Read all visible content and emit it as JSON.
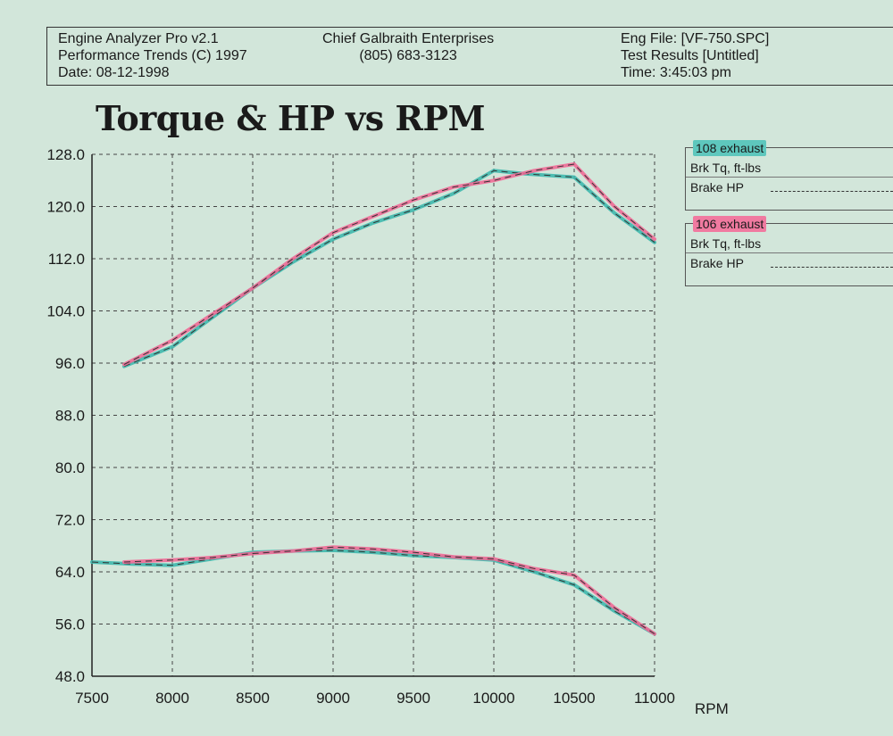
{
  "header": {
    "left": [
      "Engine Analyzer Pro v2.1",
      "Performance Trends (C) 1997",
      "Date: 08-12-1998"
    ],
    "middle": [
      "Chief Galbraith Enterprises",
      "(805) 683-3123"
    ],
    "right": [
      "Eng File: [VF-750.SPC]",
      "Test Results [Untitled]",
      "Time: 3:45:03 pm"
    ]
  },
  "legend": [
    {
      "label": "108 exhaust",
      "row1": "Brk Tq, ft-lbs",
      "row2": "Brake HP",
      "color": "#5ec7bd"
    },
    {
      "label": "106 exhaust",
      "row1": "Brk Tq, ft-lbs",
      "row2": "Brake HP",
      "color": "#f07aa0"
    }
  ],
  "chart_data": {
    "type": "line",
    "title": "Torque & HP vs RPM",
    "xlabel": "RPM",
    "ylabel": "",
    "xlim": [
      7500,
      11000
    ],
    "ylim": [
      48,
      128
    ],
    "xticks": [
      7500,
      8000,
      8500,
      9000,
      9500,
      10000,
      10500,
      11000
    ],
    "yticks": [
      "48.0",
      "56.0",
      "64.0",
      "72.0",
      "80.0",
      "88.0",
      "96.0",
      "104.0",
      "112.0",
      "120.0",
      "128.0"
    ],
    "grid": true,
    "series": [
      {
        "name": "108 exhaust - Brk Tq, ft-lbs",
        "color": "#3fb8ad",
        "x": [
          7700,
          8000,
          8250,
          8500,
          8750,
          9000,
          9250,
          9500,
          9750,
          10000,
          10200,
          10500,
          10750,
          11000
        ],
        "y": [
          95.5,
          98.5,
          103,
          107.5,
          111.5,
          115,
          117.5,
          119.5,
          122,
          125.5,
          125,
          124.5,
          119,
          114.5
        ]
      },
      {
        "name": "108 exhaust - Brake HP",
        "color": "#3fb8ad",
        "x": [
          7500,
          7750,
          8000,
          8250,
          8500,
          8750,
          9000,
          9250,
          9500,
          9750,
          10000,
          10250,
          10500,
          10750,
          11000
        ],
        "y": [
          65.5,
          65.2,
          65,
          66,
          67,
          67.2,
          67.3,
          67,
          66.5,
          66.2,
          65.8,
          64,
          62,
          58,
          54.5
        ]
      },
      {
        "name": "106 exhaust - Brk Tq, ft-lbs",
        "color": "#f06a96",
        "x": [
          7700,
          8000,
          8250,
          8500,
          8750,
          9000,
          9250,
          9500,
          9750,
          10000,
          10250,
          10500,
          10750,
          11000
        ],
        "y": [
          95.8,
          99.5,
          103.5,
          107.5,
          112,
          116,
          118.5,
          121,
          123,
          124,
          125.5,
          126.5,
          120,
          115
        ]
      },
      {
        "name": "106 exhaust - Brake HP",
        "color": "#f06a96",
        "x": [
          7700,
          8000,
          8250,
          8500,
          8750,
          9000,
          9250,
          9500,
          9750,
          10000,
          10250,
          10500,
          10750,
          11000
        ],
        "y": [
          65.5,
          65.8,
          66.2,
          66.8,
          67.2,
          67.8,
          67.5,
          67,
          66.3,
          66,
          64.5,
          63.5,
          58.5,
          54.5
        ]
      }
    ]
  }
}
